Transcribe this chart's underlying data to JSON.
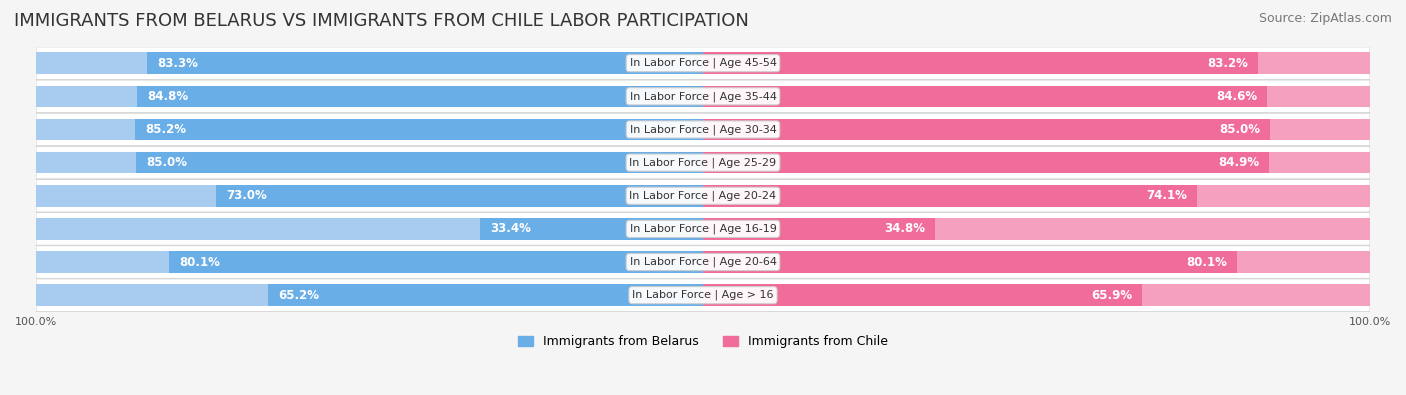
{
  "title": "IMMIGRANTS FROM BELARUS VS IMMIGRANTS FROM CHILE LABOR PARTICIPATION",
  "source": "Source: ZipAtlas.com",
  "categories": [
    "In Labor Force | Age > 16",
    "In Labor Force | Age 20-64",
    "In Labor Force | Age 16-19",
    "In Labor Force | Age 20-24",
    "In Labor Force | Age 25-29",
    "In Labor Force | Age 30-34",
    "In Labor Force | Age 35-44",
    "In Labor Force | Age 45-54"
  ],
  "belarus_values": [
    65.2,
    80.1,
    33.4,
    73.0,
    85.0,
    85.2,
    84.8,
    83.3
  ],
  "chile_values": [
    65.9,
    80.1,
    34.8,
    74.1,
    84.9,
    85.0,
    84.6,
    83.2
  ],
  "belarus_color": "#6aaee8",
  "chile_color": "#f06c9b",
  "belarus_color_light": "#a8ccf0",
  "chile_color_light": "#f5a0bf",
  "max_value": 100.0,
  "legend_belarus": "Immigrants from Belarus",
  "legend_chile": "Immigrants from Chile",
  "title_fontsize": 13,
  "source_fontsize": 9,
  "bar_label_fontsize": 8.5,
  "category_fontsize": 8,
  "legend_fontsize": 9,
  "axis_label_fontsize": 8
}
